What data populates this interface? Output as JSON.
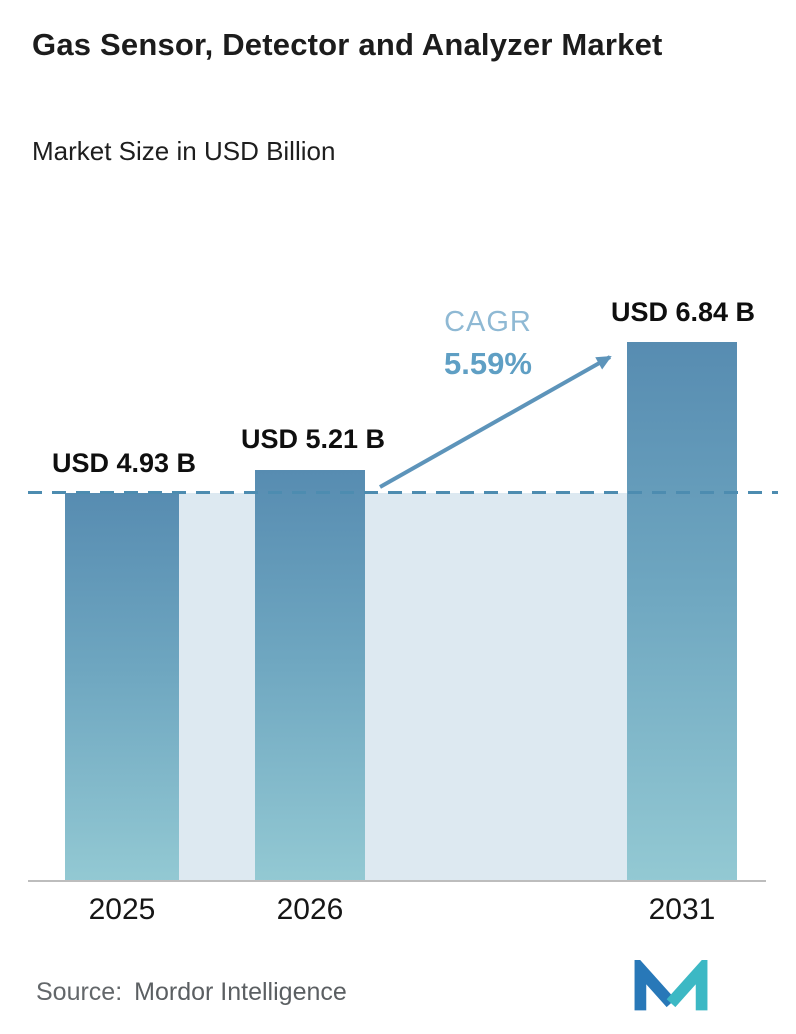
{
  "header": {
    "title": "Gas Sensor, Detector and Analyzer Market",
    "subtitle": "Market Size in USD Billion"
  },
  "chart_data": {
    "type": "bar",
    "title": "Gas Sensor, Detector and Analyzer Market",
    "subtitle": "Market Size in USD Billion",
    "categories": [
      "2025",
      "2026",
      "2031"
    ],
    "values": [
      4.93,
      5.21,
      6.84
    ],
    "value_labels": [
      "USD 4.93 B",
      "USD 5.21 B",
      "USD 6.84 B"
    ],
    "ylim": [
      0,
      7.2
    ],
    "grid": false,
    "legend": "none",
    "reference_line": {
      "value": 4.93,
      "style": "dashed"
    },
    "annotations": {
      "cagr_label": "CAGR",
      "cagr_value": "5.59%",
      "arrow": "from 2026 bar top to 2031 bar top"
    },
    "colors": {
      "bar_gradient_top": "#578cb1",
      "bar_gradient_bottom": "#93c9d3",
      "band_fill": "#dde9f1",
      "dashed_line": "#4d8cb0",
      "arrow": "#5d94ba",
      "cagr_text": "#8fb9d4",
      "cagr_value_text": "#5f9fc4"
    }
  },
  "footer": {
    "source_label": "Source:",
    "source_value": "Mordor Intelligence",
    "logo_colors": {
      "left": "#2878b8",
      "right": "#3cb8c4"
    }
  }
}
